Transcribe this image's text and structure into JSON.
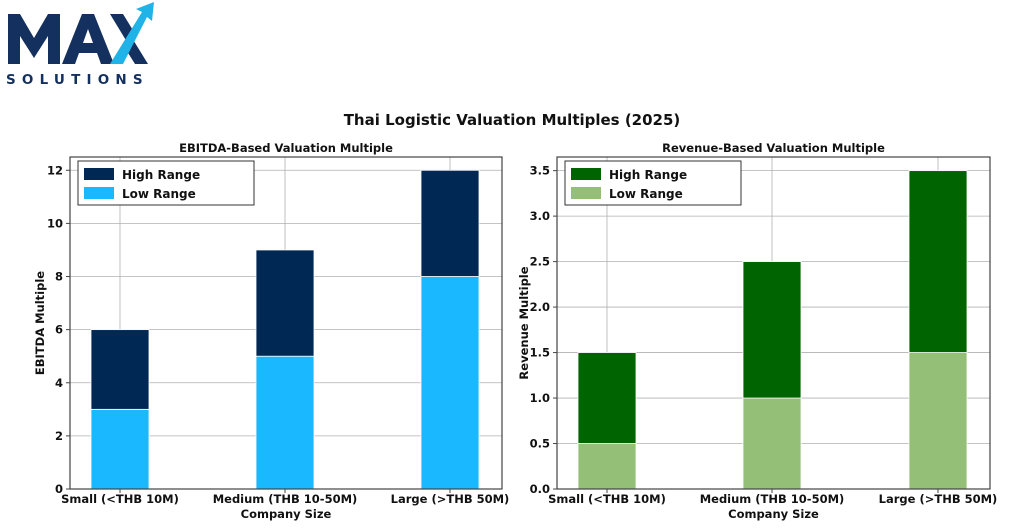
{
  "logo": {
    "brand_letters": "MAX",
    "word": "SOLUTIONS",
    "colors": {
      "navy": "#14305e",
      "cyan": "#1fb3e8"
    }
  },
  "title": "Thai Logistic Valuation Multiples (2025)",
  "chart_data": [
    {
      "type": "bar",
      "stacked": true,
      "title": "EBITDA-Based Valuation Multiple",
      "xlabel": "Company Size",
      "ylabel": "EBITDA Multiple",
      "categories": [
        "Small (<THB 10M)",
        "Medium (THB 10-50M)",
        "Large (>THB 50M)"
      ],
      "ylim": [
        0,
        12.5
      ],
      "yticks": [
        0,
        2,
        4,
        6,
        8,
        10,
        12
      ],
      "ytick_labels": [
        "0",
        "2",
        "4",
        "6",
        "8",
        "10",
        "12"
      ],
      "grid": true,
      "legend_position": "top-left",
      "legend_order": [
        1,
        0
      ],
      "series": [
        {
          "name": "Low Range",
          "values": [
            3,
            5,
            8
          ],
          "color": "#1ab8ff"
        },
        {
          "name": "High Range",
          "values": [
            3,
            4,
            4
          ],
          "color": "#002855"
        }
      ]
    },
    {
      "type": "bar",
      "stacked": true,
      "title": "Revenue-Based Valuation Multiple",
      "xlabel": "Company Size",
      "ylabel": "Revenue Multiple",
      "categories": [
        "Small (<THB 10M)",
        "Medium (THB 10-50M)",
        "Large (>THB 50M)"
      ],
      "ylim": [
        0,
        3.65
      ],
      "yticks": [
        0,
        0.5,
        1,
        1.5,
        2,
        2.5,
        3,
        3.5
      ],
      "ytick_labels": [
        "0.0",
        "0.5",
        "1.0",
        "1.5",
        "2.0",
        "2.5",
        "3.0",
        "3.5"
      ],
      "grid": true,
      "legend_position": "top-left",
      "legend_order": [
        1,
        0
      ],
      "series": [
        {
          "name": "Low Range",
          "values": [
            0.5,
            1,
            1.5
          ],
          "color": "#93bf77"
        },
        {
          "name": "High Range",
          "values": [
            1,
            1.5,
            2
          ],
          "color": "#006400"
        }
      ]
    }
  ]
}
